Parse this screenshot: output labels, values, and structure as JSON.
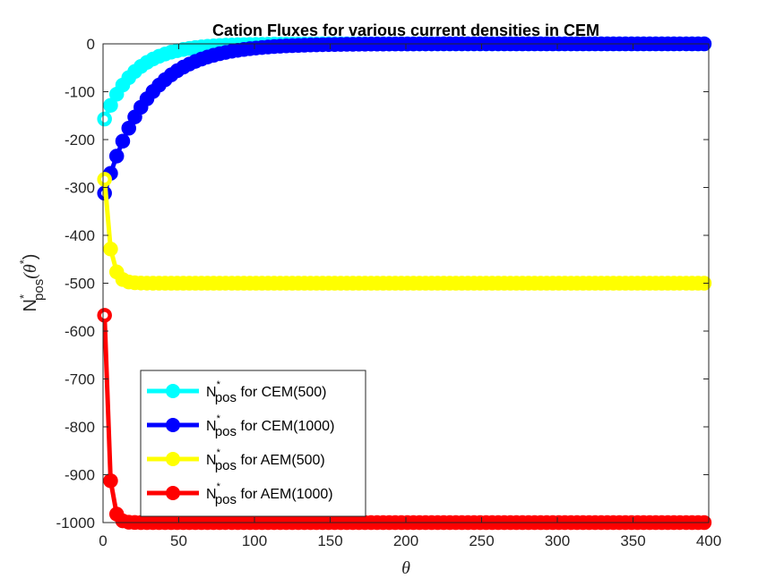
{
  "chart_data": {
    "type": "line",
    "title": "Cation Fluxes for various current densities in CEM",
    "xlabel": "θ",
    "ylabel": {
      "base": "N",
      "sup": "*",
      "sub": "pos",
      "arg": "(θ",
      "arg_sup": "*",
      "arg_close": ")"
    },
    "xlim": [
      0,
      400
    ],
    "ylim": [
      -1000,
      0
    ],
    "xticks": [
      0,
      50,
      100,
      150,
      200,
      250,
      300,
      350,
      400
    ],
    "yticks": [
      0,
      -100,
      -200,
      -300,
      -400,
      -500,
      -600,
      -700,
      -800,
      -900,
      -1000
    ],
    "grid": false,
    "legend_position": "bottom-left",
    "series": [
      {
        "name": "N*pos for CEM(500)",
        "legend": {
          "base": "N",
          "sup": "*",
          "sub": "pos",
          "text": " for CEM(500)"
        },
        "color": "#00ffff",
        "start": -157,
        "steady": 0,
        "decay": 20
      },
      {
        "name": "N*pos for CEM(1000)",
        "legend": {
          "base": "N",
          "sup": "*",
          "sub": "pos",
          "text": "  for CEM(1000)"
        },
        "color": "#0000ff",
        "start": -312,
        "steady": 0,
        "decay": 28
      },
      {
        "name": "N*pos for AEM(500)",
        "legend": {
          "base": "N",
          "sup": "*",
          "sub": "pos",
          "text": "  for AEM(500)"
        },
        "color": "#ffff00",
        "start": -283,
        "steady": -500,
        "decay": 3.6
      },
      {
        "name": "N*pos for AEM(1000)",
        "legend": {
          "base": "N",
          "sup": "*",
          "sub": "pos",
          "text": "  for AEM(1000)"
        },
        "color": "#ff0000",
        "start": -567,
        "steady": -1000,
        "decay": 2.5
      }
    ],
    "x_step": 4,
    "x_start": 1
  }
}
